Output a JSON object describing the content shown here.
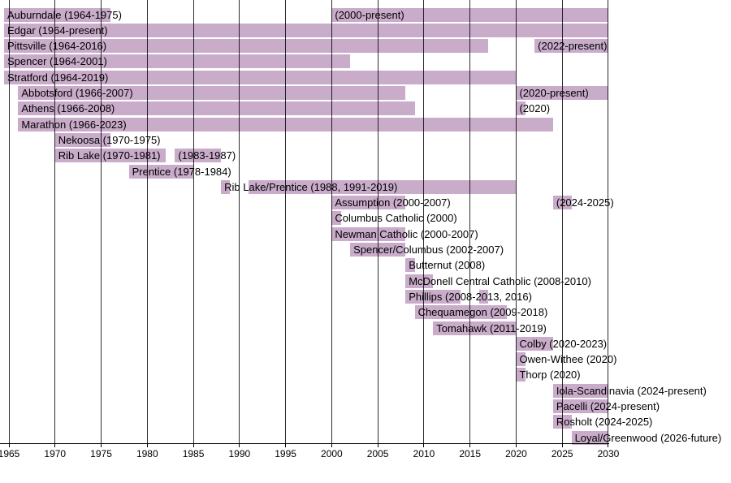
{
  "chart_data": {
    "type": "bar",
    "subtype": "gantt-membership-timeline",
    "title": "",
    "xlabel": "",
    "ylabel": "",
    "grid": true,
    "legend": "none",
    "x_axis": {
      "min": 1964,
      "max": 2030,
      "tick_step": 5,
      "tick_years": [
        1965,
        1970,
        1975,
        1980,
        1985,
        1990,
        1995,
        2000,
        2005,
        2010,
        2015,
        2020,
        2025,
        2030
      ]
    },
    "colors": {
      "bar_fill": "#c9abca",
      "gridline": "#000000",
      "axis": "#000000",
      "text": "#000000",
      "background": "#ffffff"
    },
    "present_year": 2030,
    "future_year": 2030,
    "rows": [
      {
        "name": "Auburndale",
        "segments": [
          {
            "start": 1964,
            "end": 1975,
            "label": "Auburndale (1964-1975)"
          },
          {
            "start": 2000,
            "end": "present",
            "label": "(2000-present)"
          }
        ]
      },
      {
        "name": "Edgar",
        "segments": [
          {
            "start": 1964,
            "end": "present",
            "label": "Edgar (1964-present)"
          }
        ]
      },
      {
        "name": "Pittsville",
        "segments": [
          {
            "start": 1964,
            "end": 2016,
            "label": "Pittsville (1964-2016)"
          },
          {
            "start": 2022,
            "end": "present",
            "label": "(2022-present)"
          }
        ]
      },
      {
        "name": "Spencer",
        "segments": [
          {
            "start": 1964,
            "end": 2001,
            "label": "Spencer (1964-2001)"
          }
        ]
      },
      {
        "name": "Stratford",
        "segments": [
          {
            "start": 1964,
            "end": 2019,
            "label": "Stratford (1964-2019)"
          }
        ]
      },
      {
        "name": "Abbotsford",
        "segments": [
          {
            "start": 1966,
            "end": 2007,
            "label": "Abbotsford (1966-2007)"
          },
          {
            "start": 2020,
            "end": "present",
            "label": "(2020-present)"
          }
        ]
      },
      {
        "name": "Athens",
        "segments": [
          {
            "start": 1966,
            "end": 2008,
            "label": "Athens (1966-2008)"
          },
          {
            "start": 2020,
            "end": 2020,
            "label": "(2020)"
          }
        ]
      },
      {
        "name": "Marathon",
        "segments": [
          {
            "start": 1966,
            "end": 2023,
            "label": "Marathon (1966-2023)"
          }
        ]
      },
      {
        "name": "Nekoosa",
        "segments": [
          {
            "start": 1970,
            "end": 1975,
            "label": "Nekoosa (1970-1975)"
          }
        ]
      },
      {
        "name": "Rib Lake",
        "segments": [
          {
            "start": 1970,
            "end": 1981,
            "label": "Rib Lake (1970-1981)"
          },
          {
            "start": 1983,
            "end": 1987,
            "label": "(1983-1987)"
          }
        ]
      },
      {
        "name": "Prentice",
        "segments": [
          {
            "start": 1978,
            "end": 1984,
            "label": "Prentice (1978-1984)"
          }
        ]
      },
      {
        "name": "Rib Lake/Prentice",
        "segments": [
          {
            "start": 1988,
            "end": 1988,
            "label": "Rib Lake/Prentice (1988, 1991-2019)"
          },
          {
            "start": 1991,
            "end": 2019,
            "label": ""
          }
        ]
      },
      {
        "name": "Assumption",
        "segments": [
          {
            "start": 2000,
            "end": 2007,
            "label": "Assumption (2000-2007)"
          },
          {
            "start": 2024,
            "end": 2025,
            "label": "(2024-2025)"
          }
        ]
      },
      {
        "name": "Columbus Catholic",
        "segments": [
          {
            "start": 2000,
            "end": 2000,
            "label": "Columbus Catholic (2000)"
          }
        ]
      },
      {
        "name": "Newman Catholic",
        "segments": [
          {
            "start": 2000,
            "end": 2007,
            "label": "Newman Catholic (2000-2007)"
          }
        ]
      },
      {
        "name": "Spencer/Columbus",
        "segments": [
          {
            "start": 2002,
            "end": 2007,
            "label": "Spencer/Columbus (2002-2007)"
          }
        ]
      },
      {
        "name": "Butternut",
        "segments": [
          {
            "start": 2008,
            "end": 2008,
            "label": "Butternut (2008)"
          }
        ]
      },
      {
        "name": "McDonell Central Catholic",
        "segments": [
          {
            "start": 2008,
            "end": 2010,
            "label": "McDonell Central Catholic (2008-2010)"
          }
        ]
      },
      {
        "name": "Phillips",
        "segments": [
          {
            "start": 2008,
            "end": 2013,
            "label": "Phillips (2008-2013, 2016)"
          },
          {
            "start": 2016,
            "end": 2016,
            "label": ""
          }
        ]
      },
      {
        "name": "Chequamegon",
        "segments": [
          {
            "start": 2009,
            "end": 2018,
            "label": "Chequamegon (2009-2018)"
          }
        ]
      },
      {
        "name": "Tomahawk",
        "segments": [
          {
            "start": 2011,
            "end": 2019,
            "label": "Tomahawk (2011-2019)"
          }
        ]
      },
      {
        "name": "Colby",
        "segments": [
          {
            "start": 2020,
            "end": 2023,
            "label": "Colby (2020-2023)"
          }
        ]
      },
      {
        "name": "Owen-Withee",
        "segments": [
          {
            "start": 2020,
            "end": 2020,
            "label": "Owen-Withee (2020)"
          }
        ]
      },
      {
        "name": "Thorp",
        "segments": [
          {
            "start": 2020,
            "end": 2020,
            "label": "Thorp (2020)"
          }
        ]
      },
      {
        "name": "Iola-Scandinavia",
        "segments": [
          {
            "start": 2024,
            "end": "present",
            "label": "Iola-Scandinavia (2024-present)"
          }
        ]
      },
      {
        "name": "Pacelli",
        "segments": [
          {
            "start": 2024,
            "end": "present",
            "label": "Pacelli (2024-present)"
          }
        ]
      },
      {
        "name": "Rosholt",
        "segments": [
          {
            "start": 2024,
            "end": 2025,
            "label": "Rosholt (2024-2025)"
          }
        ]
      },
      {
        "name": "Loyal/Greenwood",
        "segments": [
          {
            "start": 2026,
            "end": "future",
            "label": "Loyal/Greenwood (2026-future)"
          }
        ]
      }
    ]
  }
}
